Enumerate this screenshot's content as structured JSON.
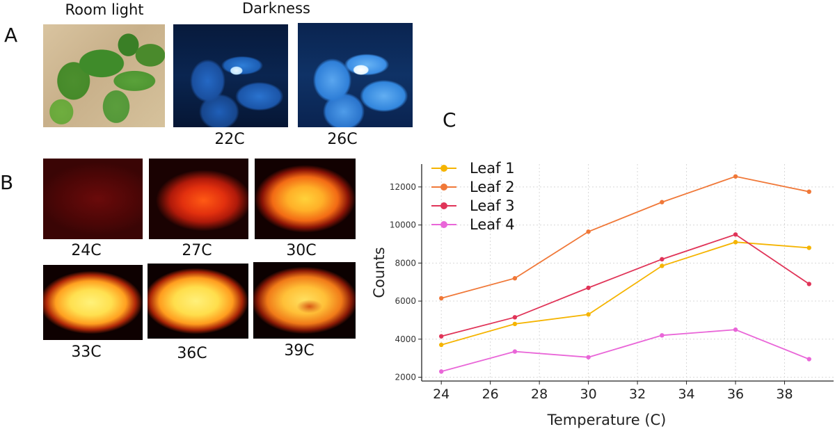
{
  "panels": {
    "a": {
      "letter": "A",
      "room_light_label": "Room light",
      "darkness_label": "Darkness",
      "captions": [
        "22C",
        "26C"
      ]
    },
    "b": {
      "letter": "B",
      "captions": [
        "24C",
        "27C",
        "30C",
        "33C",
        "36C",
        "39C"
      ]
    },
    "c": {
      "letter": "C"
    }
  },
  "chart_data": {
    "type": "line",
    "x": [
      24,
      27,
      30,
      33,
      36,
      39
    ],
    "xlabel": "Temperature (C)",
    "ylabel": "Counts",
    "xticks": [
      24,
      26,
      28,
      30,
      32,
      34,
      36,
      38
    ],
    "yticks": [
      2000,
      4000,
      6000,
      8000,
      10000,
      12000
    ],
    "xlim": [
      23.2,
      40
    ],
    "ylim": [
      1800,
      13200
    ],
    "grid": true,
    "legend_position": "top-left",
    "series": [
      {
        "name": "Leaf 1",
        "color": "#f5b400",
        "values": [
          3700,
          4800,
          5300,
          7850,
          9100,
          8800
        ]
      },
      {
        "name": "Leaf 2",
        "color": "#f07838",
        "values": [
          6150,
          7200,
          9650,
          11200,
          12550,
          11750
        ]
      },
      {
        "name": "Leaf 3",
        "color": "#e03458",
        "values": [
          4150,
          5150,
          6700,
          8200,
          9500,
          6900
        ]
      },
      {
        "name": "Leaf 4",
        "color": "#e966d8",
        "values": [
          2300,
          3350,
          3050,
          4200,
          4500,
          2950
        ]
      }
    ]
  }
}
